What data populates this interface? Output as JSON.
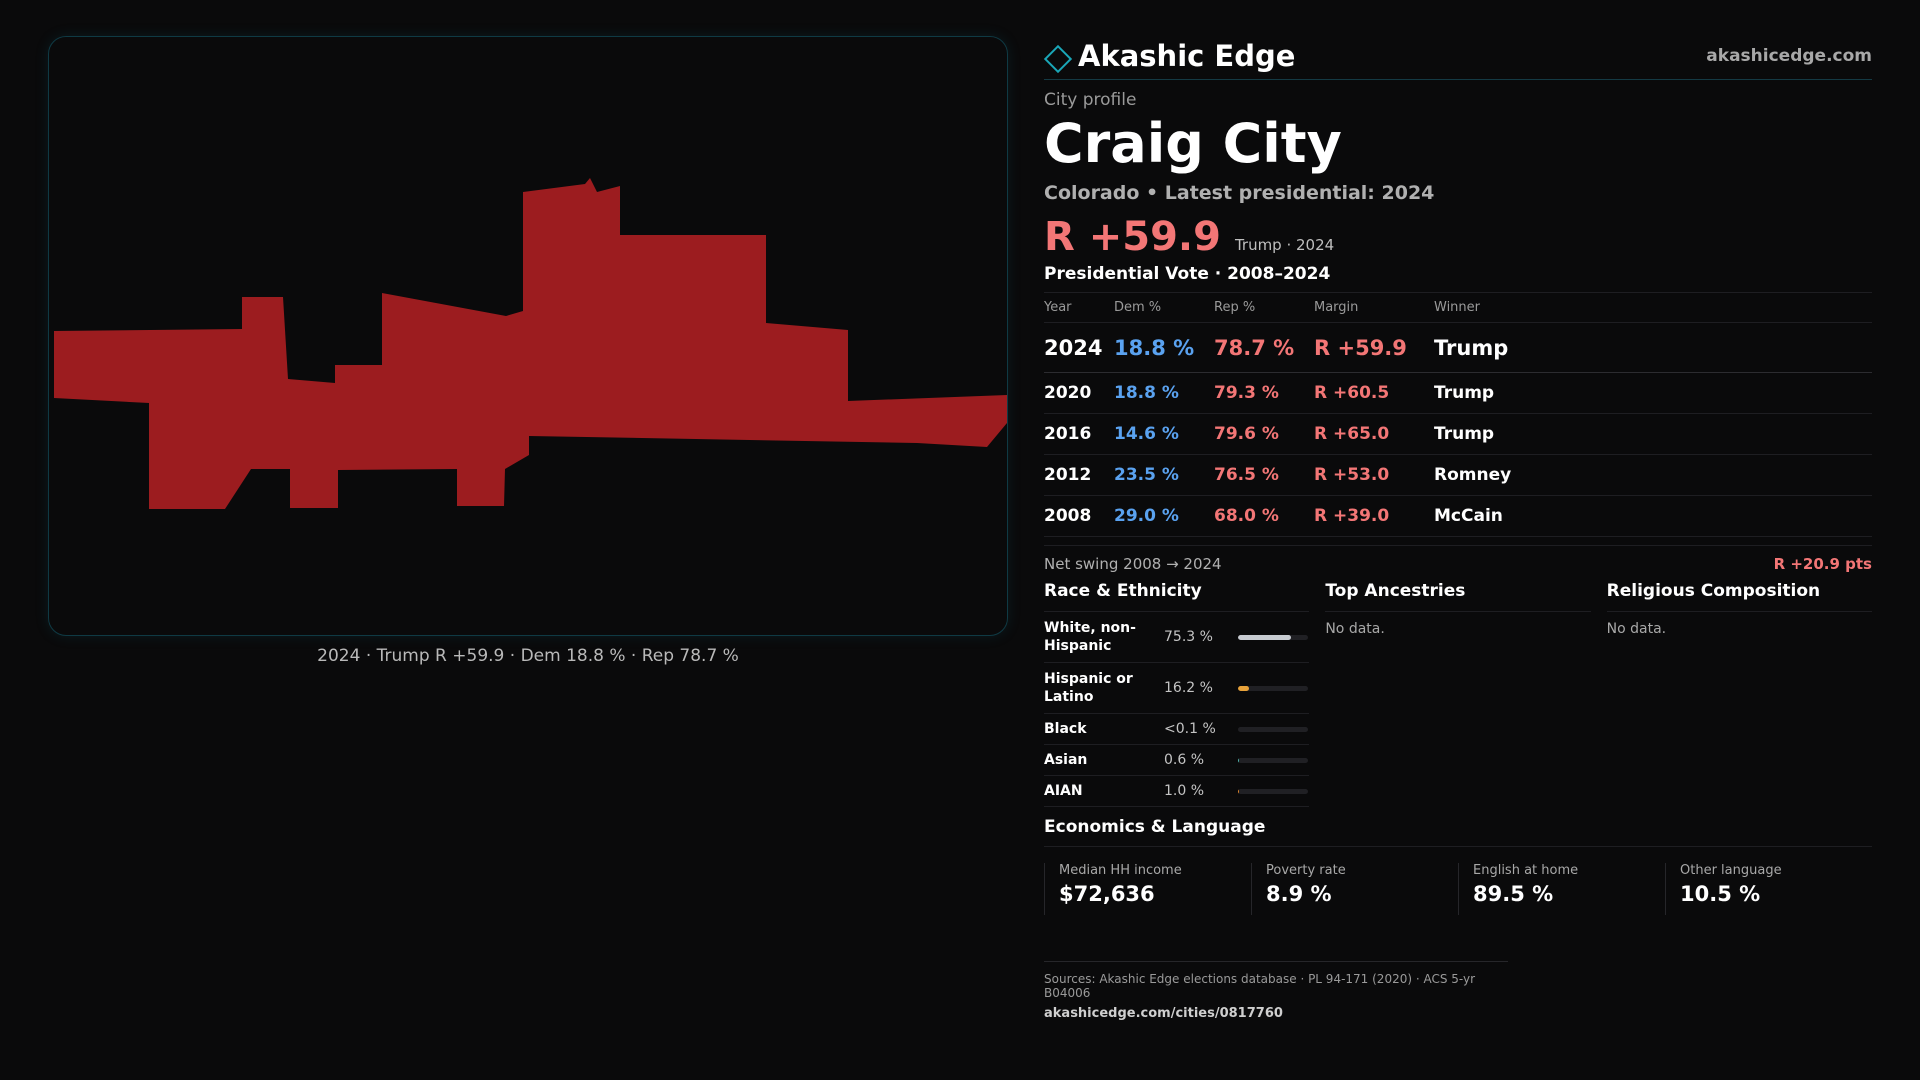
{
  "brand": {
    "name": "Akashic Edge",
    "url": "akashicedge.com",
    "accent": "#1aa7b8"
  },
  "city": {
    "label": "City profile",
    "name": "Craig City",
    "subtitle": "Colorado • Latest presidential: 2024",
    "headline_margin": "R +59.9",
    "headline_note": "Trump · 2024"
  },
  "map": {
    "caption": "2024 · Trump  R +59.9 · Dem 18.8 % · Rep 78.7 %",
    "fill_color": "#9c1c1f"
  },
  "votes": {
    "title": "Presidential Vote · 2008–2024",
    "headers": {
      "year": "Year",
      "dem": "Dem %",
      "rep": "Rep %",
      "margin": "Margin",
      "winner": "Winner"
    },
    "rows": [
      {
        "year": "2024",
        "dem": "18.8 %",
        "rep": "78.7 %",
        "margin": "R +59.9",
        "winner": "Trump"
      },
      {
        "year": "2020",
        "dem": "18.8 %",
        "rep": "79.3 %",
        "margin": "R +60.5",
        "winner": "Trump"
      },
      {
        "year": "2016",
        "dem": "14.6 %",
        "rep": "79.6 %",
        "margin": "R +65.0",
        "winner": "Trump"
      },
      {
        "year": "2012",
        "dem": "23.5 %",
        "rep": "76.5 %",
        "margin": "R +53.0",
        "winner": "Romney"
      },
      {
        "year": "2008",
        "dem": "29.0 %",
        "rep": "68.0 %",
        "margin": "R +39.0",
        "winner": "McCain"
      }
    ],
    "dem_color": "#5aa2f0",
    "rep_color": "#f37676"
  },
  "swing": {
    "label": "Net swing 2008 → 2024",
    "value": "R +20.9 pts"
  },
  "race": {
    "title": "Race & Ethnicity",
    "rows": [
      {
        "label": "White, non-Hispanic",
        "value": "75.3 %",
        "share": 0.753,
        "color": "#c7cbd1"
      },
      {
        "label": "Hispanic or Latino",
        "value": "16.2 %",
        "share": 0.162,
        "color": "#e8a23a"
      },
      {
        "label": "Black",
        "value": "<0.1 %",
        "share": 0.0,
        "color": "#8a8a8a"
      },
      {
        "label": "Asian",
        "value": "0.6 %",
        "share": 0.006,
        "color": "#4fb3a9"
      },
      {
        "label": "AIAN",
        "value": "1.0 %",
        "share": 0.01,
        "color": "#d9822b"
      }
    ]
  },
  "ancestries": {
    "title": "Top Ancestries",
    "empty": "No data."
  },
  "religion": {
    "title": "Religious Composition",
    "empty": "No data."
  },
  "economics": {
    "title": "Economics & Language",
    "items": [
      {
        "label": "Median HH income",
        "value": "$72,636"
      },
      {
        "label": "Poverty rate",
        "value": "8.9 %"
      },
      {
        "label": "English at home",
        "value": "89.5 %"
      },
      {
        "label": "Other language",
        "value": "10.5 %"
      }
    ]
  },
  "footer": {
    "sources": "Sources: Akashic Edge elections database · PL 94-171 (2020) · ACS 5-yr B04006",
    "url": "akashicedge.com/cities/0817760"
  }
}
